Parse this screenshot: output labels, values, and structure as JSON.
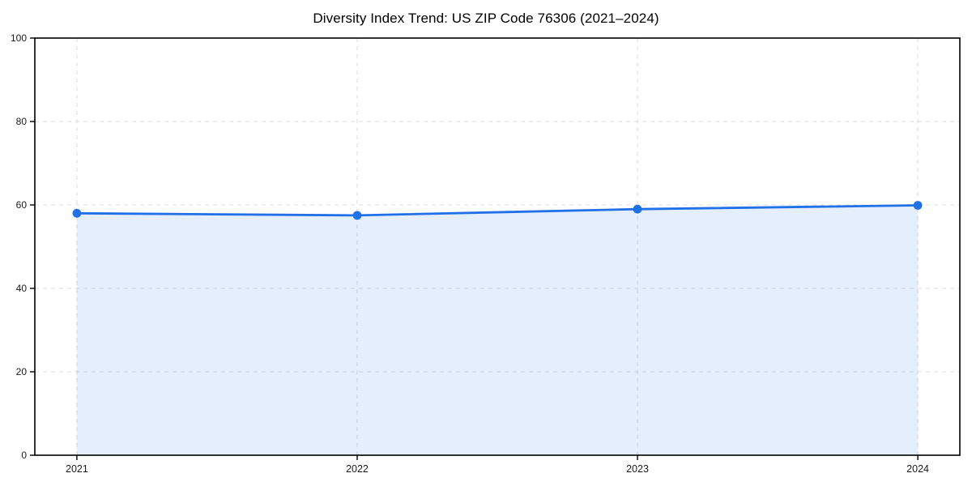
{
  "title": "Diversity Index Trend: US ZIP Code 76306 (2021–2024)",
  "chart_data": {
    "type": "line",
    "title": "Diversity Index Trend: US ZIP Code 76306 (2021–2024)",
    "categories": [
      "2021",
      "2022",
      "2023",
      "2024"
    ],
    "series": [
      {
        "name": "Diversity Index",
        "values": [
          58.0,
          57.5,
          59.0,
          59.9
        ]
      }
    ],
    "xlabel": "",
    "ylabel": "",
    "ylim": [
      0,
      100
    ],
    "yticks": [
      0,
      20,
      40,
      60,
      80,
      100
    ],
    "x_margin_fraction": 0.05,
    "grid": true,
    "grid_style": "dashed",
    "legend_position": "none",
    "area_fill": true,
    "marker": "circle",
    "colors": {
      "line": "#2170e8",
      "marker": "#2170e8",
      "fill": "#2170e8",
      "fill_opacity": 0.12,
      "grid": "#dcdcdc",
      "spine": "#000000",
      "tick_label": "#1a1a1a",
      "title": "#000000",
      "background": "#ffffff"
    }
  }
}
